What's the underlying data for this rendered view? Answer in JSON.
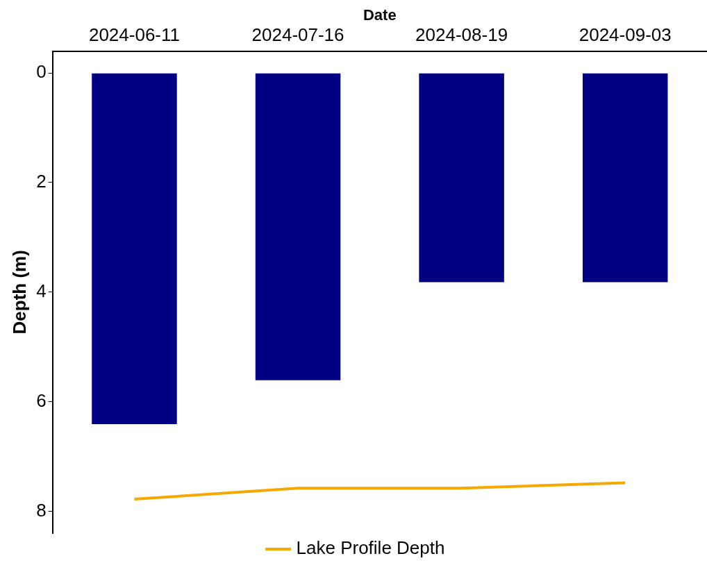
{
  "chart_data": {
    "type": "bar",
    "xlabel": "Date",
    "ylabel": "Depth (m)",
    "categories": [
      "2024-06-11",
      "2024-07-16",
      "2024-08-19",
      "2024-09-03"
    ],
    "series": [
      {
        "color": "#000080",
        "values": [
          6.41,
          5.61,
          3.82,
          3.82
        ]
      },
      {
        "type": "line",
        "name": "Lake Profile Depth",
        "color": "#f5a800",
        "values": [
          7.78,
          7.58,
          7.58,
          7.48
        ]
      }
    ],
    "ylim": [
      8.4,
      -0.4
    ],
    "yticks": [
      0,
      2,
      4,
      6,
      8
    ],
    "grid": false,
    "legend": "bottom",
    "marker": "none",
    "line_style": "solid"
  }
}
